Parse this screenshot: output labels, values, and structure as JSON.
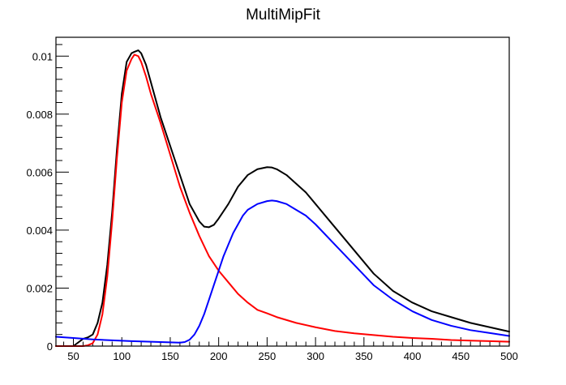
{
  "chart_data": {
    "type": "line",
    "title": "MultiMipFit",
    "xlabel": "",
    "ylabel": "",
    "xlim": [
      32,
      500
    ],
    "ylim": [
      0,
      0.01065
    ],
    "x_ticks": [
      50,
      100,
      150,
      200,
      250,
      300,
      350,
      400,
      450,
      500
    ],
    "x_tick_labels": [
      "50",
      "100",
      "150",
      "200",
      "250",
      "300",
      "350",
      "400",
      "450",
      "500"
    ],
    "y_ticks": [
      0,
      0.002,
      0.004,
      0.006,
      0.008,
      0.01
    ],
    "y_tick_labels": [
      "0",
      "0.002",
      "0.004",
      "0.006",
      "0.008",
      "0.01"
    ],
    "grid": false,
    "legend": "none",
    "series": [
      {
        "color": "#000000",
        "x": [
          32,
          50,
          60,
          65,
          70,
          75,
          80,
          85,
          90,
          95,
          100,
          105,
          110,
          113,
          117,
          120,
          125,
          130,
          135,
          140,
          150,
          160,
          170,
          180,
          185,
          190,
          195,
          200,
          210,
          220,
          230,
          240,
          250,
          255,
          260,
          270,
          280,
          290,
          300,
          320,
          340,
          360,
          380,
          400,
          420,
          440,
          460,
          480,
          500
        ],
        "y": [
          0,
          0,
          0.00025,
          0.0003,
          0.0004,
          0.0008,
          0.0015,
          0.0028,
          0.0046,
          0.0068,
          0.0087,
          0.0098,
          0.0101,
          0.01015,
          0.0102,
          0.0101,
          0.0097,
          0.0091,
          0.0085,
          0.0079,
          0.0069,
          0.0059,
          0.0049,
          0.0043,
          0.00412,
          0.0041,
          0.00418,
          0.0044,
          0.0049,
          0.0055,
          0.0059,
          0.0061,
          0.00617,
          0.00616,
          0.0061,
          0.0059,
          0.0056,
          0.0053,
          0.0049,
          0.0041,
          0.0033,
          0.0025,
          0.0019,
          0.0015,
          0.0012,
          0.001,
          0.0008,
          0.00065,
          0.0005
        ]
      },
      {
        "color": "#ff0000",
        "x": [
          32,
          60,
          65,
          70,
          75,
          80,
          85,
          90,
          95,
          100,
          105,
          110,
          113,
          117,
          120,
          125,
          130,
          140,
          150,
          160,
          170,
          180,
          190,
          200,
          210,
          220,
          230,
          240,
          250,
          260,
          280,
          300,
          320,
          340,
          360,
          380,
          400,
          420,
          440,
          460,
          480,
          500
        ],
        "y": [
          0,
          0,
          3e-05,
          0.0001,
          0.0004,
          0.0011,
          0.0024,
          0.0043,
          0.0065,
          0.0084,
          0.0095,
          0.0099,
          0.01005,
          0.01,
          0.0098,
          0.0093,
          0.0087,
          0.0077,
          0.0066,
          0.0055,
          0.0046,
          0.0038,
          0.0031,
          0.0026,
          0.0022,
          0.0018,
          0.0015,
          0.00125,
          0.00113,
          0.001,
          0.0008,
          0.00065,
          0.00052,
          0.00044,
          0.00038,
          0.00032,
          0.00028,
          0.00025,
          0.00021,
          0.00019,
          0.00017,
          0.00015
        ]
      },
      {
        "color": "#0000ff",
        "x": [
          32,
          50,
          70,
          90,
          110,
          130,
          150,
          160,
          165,
          170,
          175,
          180,
          185,
          190,
          195,
          200,
          205,
          210,
          215,
          220,
          225,
          230,
          240,
          250,
          255,
          260,
          270,
          280,
          290,
          300,
          320,
          340,
          360,
          380,
          400,
          420,
          440,
          460,
          480,
          500
        ],
        "y": [
          0.00032,
          0.00028,
          0.00023,
          0.0002,
          0.00017,
          0.00015,
          0.00013,
          0.00012,
          0.00014,
          0.00022,
          0.0004,
          0.0007,
          0.0011,
          0.0016,
          0.0021,
          0.0026,
          0.0031,
          0.0035,
          0.0039,
          0.0042,
          0.0045,
          0.0047,
          0.0049,
          0.005,
          0.00502,
          0.005,
          0.0049,
          0.0047,
          0.0045,
          0.0042,
          0.0035,
          0.0028,
          0.0021,
          0.0016,
          0.0012,
          0.0009,
          0.0007,
          0.00055,
          0.00045,
          0.00035
        ]
      }
    ]
  }
}
